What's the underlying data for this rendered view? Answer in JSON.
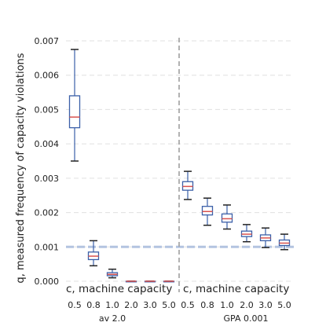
{
  "chart_data": {
    "type": "box",
    "ylabel": "q, measured frequency of capacity violations",
    "ylim": [
      0,
      0.007
    ],
    "yticks": [
      "0.000",
      "0.001",
      "0.002",
      "0.003",
      "0.004",
      "0.005",
      "0.006",
      "0.007"
    ],
    "grid": "horizontal dashed",
    "reference_line": 0.001,
    "panels": [
      {
        "xlabel": "c, machine capacity",
        "group_label": "av 2.0",
        "categories": [
          "0.5",
          "0.8",
          "1.0",
          "2.0",
          "3.0",
          "5.0"
        ],
        "boxes": [
          {
            "category": "0.5",
            "whisker_low": 0.0035,
            "q1": 0.00447,
            "median": 0.00478,
            "q3": 0.0054,
            "whisker_high": 0.00675
          },
          {
            "category": "0.8",
            "whisker_low": 0.00045,
            "q1": 0.00063,
            "median": 0.00073,
            "q3": 0.00085,
            "whisker_high": 0.00118
          },
          {
            "category": "1.0",
            "whisker_low": 0.0001,
            "q1": 0.00016,
            "median": 0.0002,
            "q3": 0.00025,
            "whisker_high": 0.00035
          },
          {
            "category": "2.0",
            "whisker_low": 0,
            "q1": 0,
            "median": 0,
            "q3": 0,
            "whisker_high": 0
          },
          {
            "category": "3.0",
            "whisker_low": 0,
            "q1": 0,
            "median": 0,
            "q3": 0,
            "whisker_high": 0
          },
          {
            "category": "5.0",
            "whisker_low": 0,
            "q1": 0,
            "median": 0,
            "q3": 0,
            "whisker_high": 0
          }
        ]
      },
      {
        "xlabel": "c, machine capacity",
        "group_label": "GPA 0.001",
        "categories": [
          "0.5",
          "0.8",
          "1.0",
          "2.0",
          "3.0",
          "5.0"
        ],
        "boxes": [
          {
            "category": "0.5",
            "whisker_low": 0.00238,
            "q1": 0.00265,
            "median": 0.00276,
            "q3": 0.0029,
            "whisker_high": 0.0032
          },
          {
            "category": "0.8",
            "whisker_low": 0.00163,
            "q1": 0.00193,
            "median": 0.00203,
            "q3": 0.00218,
            "whisker_high": 0.00242
          },
          {
            "category": "1.0",
            "whisker_low": 0.00152,
            "q1": 0.00172,
            "median": 0.00182,
            "q3": 0.00196,
            "whisker_high": 0.00222
          },
          {
            "category": "2.0",
            "whisker_low": 0.00115,
            "q1": 0.0013,
            "median": 0.00137,
            "q3": 0.00146,
            "whisker_high": 0.00165
          },
          {
            "category": "3.0",
            "whisker_low": 0.00098,
            "q1": 0.00118,
            "median": 0.00126,
            "q3": 0.00135,
            "whisker_high": 0.00155
          },
          {
            "category": "5.0",
            "whisker_low": 0.00092,
            "q1": 0.00104,
            "median": 0.00111,
            "q3": 0.0012,
            "whisker_high": 0.00137
          }
        ]
      }
    ]
  },
  "colors": {
    "box_edge": "#3a5fa8",
    "median": "#d9534f",
    "whisker": "#222222",
    "grid": "#e0e0e0",
    "reference_line": "#b3c4e0",
    "divider": "#999999"
  }
}
